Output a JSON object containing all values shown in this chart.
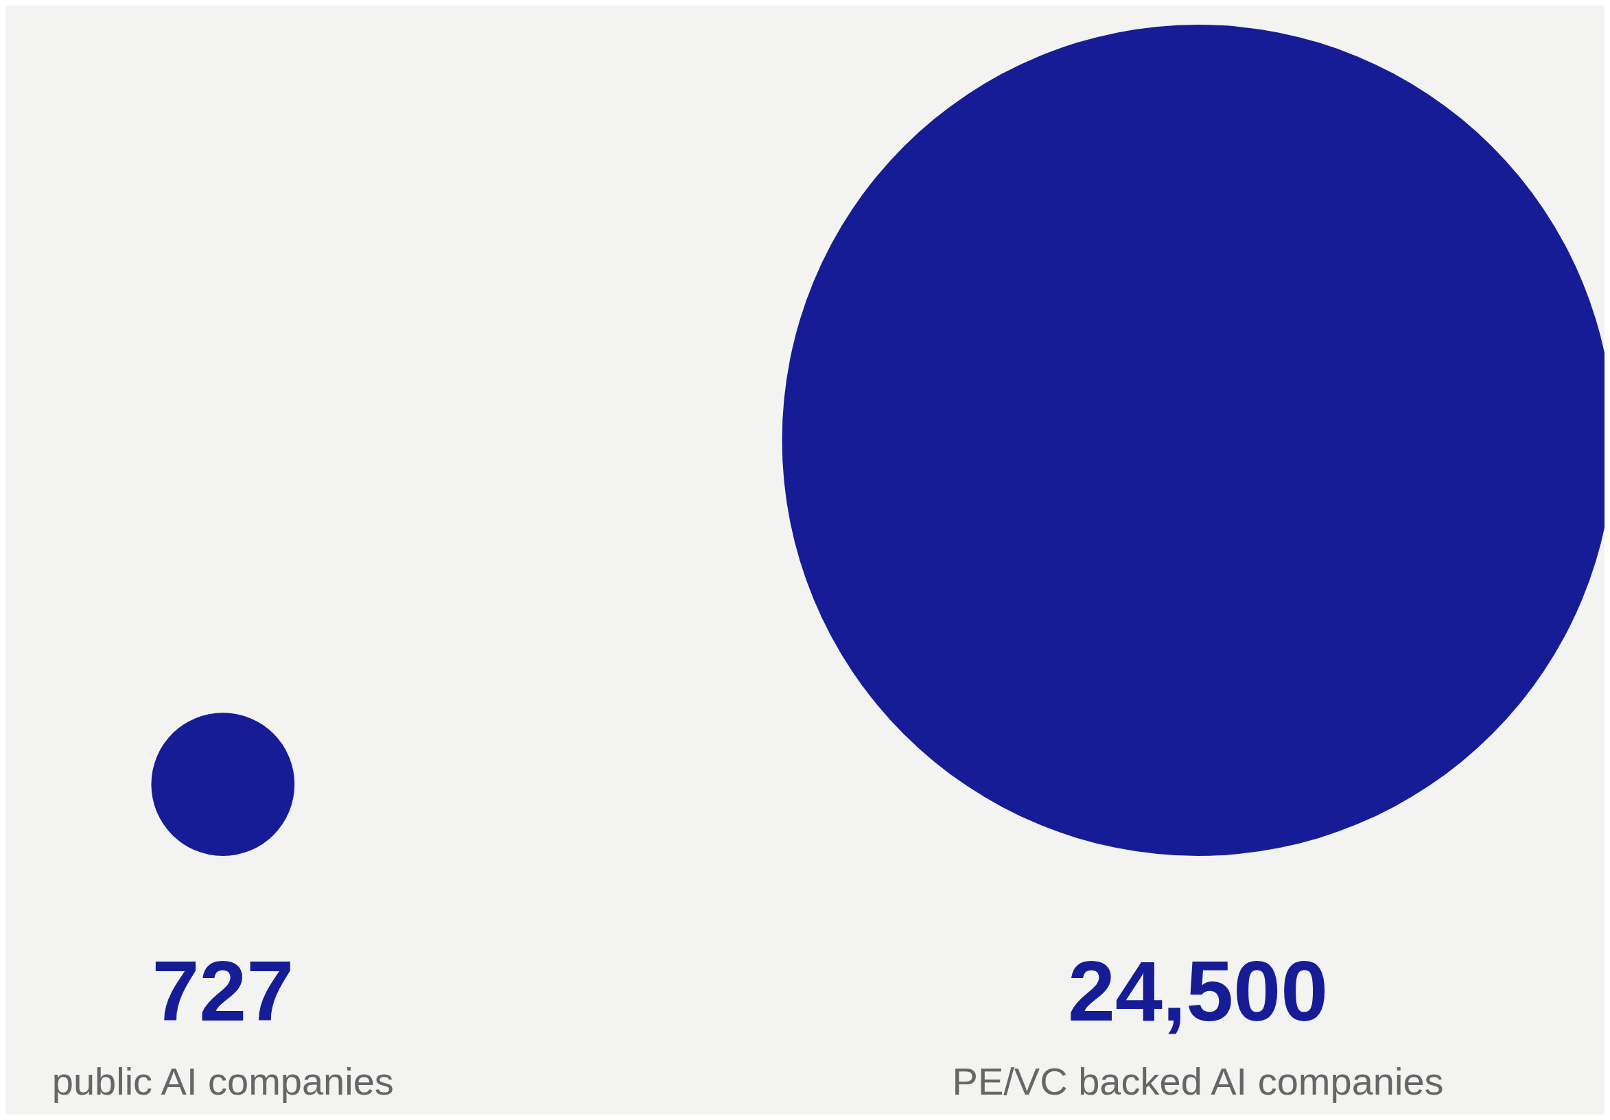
{
  "chart_data": {
    "type": "other",
    "categories": [
      "public AI companies",
      "PE/VC backed AI companies"
    ],
    "values": [
      727,
      24500
    ],
    "color": "#161c96",
    "value_labels": [
      "727",
      "24,500"
    ]
  }
}
